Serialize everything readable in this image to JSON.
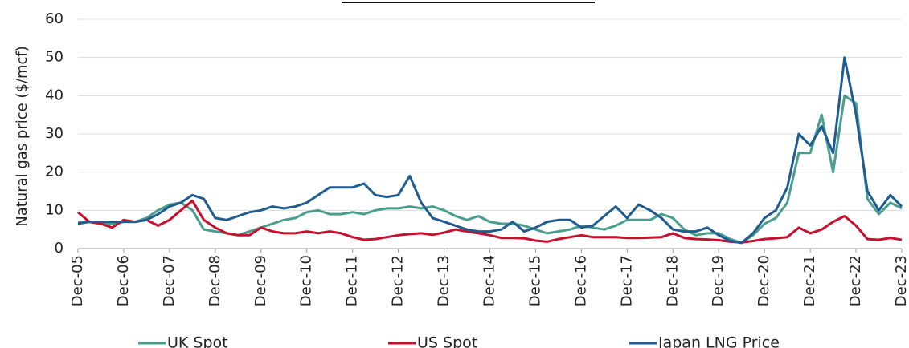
{
  "chart_data": {
    "type": "line",
    "y_label": "Natural gas price ($/mcf)",
    "categories": [
      "Dec-05",
      null,
      null,
      null,
      "Dec-06",
      null,
      null,
      null,
      "Dec-07",
      null,
      null,
      null,
      "Dec-08",
      null,
      null,
      null,
      "Dec-09",
      null,
      null,
      null,
      "Dec-10",
      null,
      null,
      null,
      "Dec-11",
      null,
      null,
      null,
      "Dec-12",
      null,
      null,
      null,
      "Dec-13",
      null,
      null,
      null,
      "Dec-14",
      null,
      null,
      null,
      "Dec-15",
      null,
      null,
      null,
      "Dec-16",
      null,
      null,
      null,
      "Dec-17",
      null,
      null,
      null,
      "Dec-18",
      null,
      null,
      null,
      "Dec-19",
      null,
      null,
      null,
      "Dec-20",
      null,
      null,
      null,
      "Dec-21",
      null,
      null,
      null,
      "Dec-22",
      null,
      null,
      null,
      "Dec-23"
    ],
    "series": [
      {
        "name": "UK Spot",
        "color": "#4a9e8e",
        "values": [
          7,
          7,
          6.5,
          6.5,
          7,
          7,
          8,
          10,
          11.5,
          12,
          10,
          5,
          4.5,
          4,
          3.5,
          4.5,
          5.5,
          6.5,
          7.5,
          8,
          9.5,
          10,
          9,
          9,
          9.5,
          9,
          10,
          10.5,
          10.5,
          11,
          10.5,
          11,
          10,
          8.5,
          7.5,
          8.5,
          7,
          6.5,
          6.5,
          6,
          5,
          4,
          4.5,
          5,
          6,
          5.5,
          5,
          6,
          7.5,
          7.5,
          7.5,
          9,
          8,
          5,
          3.5,
          4,
          4,
          2.5,
          1.5,
          3.5,
          6.5,
          8,
          12,
          25,
          25,
          35,
          20,
          40,
          38,
          13,
          9,
          12,
          10.5
        ]
      },
      {
        "name": "US Spot",
        "color": "#c8102e",
        "values": [
          9.5,
          7,
          6.5,
          5.5,
          7.5,
          7,
          7.5,
          6,
          7.5,
          10,
          12.5,
          7.5,
          5.5,
          4,
          3.5,
          3.5,
          5.5,
          4.5,
          4,
          4,
          4.5,
          4,
          4.5,
          4,
          3,
          2.3,
          2.5,
          3,
          3.5,
          3.8,
          4,
          3.6,
          4.2,
          5,
          4.5,
          4,
          3.5,
          2.8,
          2.8,
          2.7,
          2.1,
          1.8,
          2.5,
          3,
          3.5,
          3,
          3,
          3,
          2.8,
          2.8,
          2.9,
          3,
          4,
          2.8,
          2.5,
          2.4,
          2.2,
          1.8,
          1.6,
          2,
          2.5,
          2.7,
          3,
          5.5,
          4,
          5,
          7,
          8.5,
          6,
          2.5,
          2.3,
          2.8,
          2.3
        ]
      },
      {
        "name": "Japan LNG Price",
        "color": "#1f5c8f",
        "values": [
          6.5,
          7,
          7,
          7,
          7,
          7,
          7.5,
          9,
          11,
          12,
          14,
          13,
          8,
          7.5,
          8.5,
          9.5,
          10,
          11,
          10.5,
          11,
          12,
          14,
          16,
          16,
          16,
          17,
          14,
          13.5,
          14,
          19,
          12,
          8,
          7,
          6,
          5,
          4.5,
          4.5,
          5,
          7,
          4.5,
          5.5,
          7,
          7.5,
          7.5,
          5.5,
          6,
          8.5,
          11,
          8,
          11.5,
          10,
          8,
          5,
          4.5,
          4.5,
          5.5,
          3.5,
          2,
          1.5,
          4,
          8,
          10,
          16,
          30,
          27,
          32,
          25,
          50,
          35,
          15,
          10,
          14,
          11
        ]
      }
    ],
    "ylim": [
      0,
      60
    ],
    "yticks": [
      0,
      10,
      20,
      30,
      40,
      50,
      60
    ],
    "grid": true
  }
}
